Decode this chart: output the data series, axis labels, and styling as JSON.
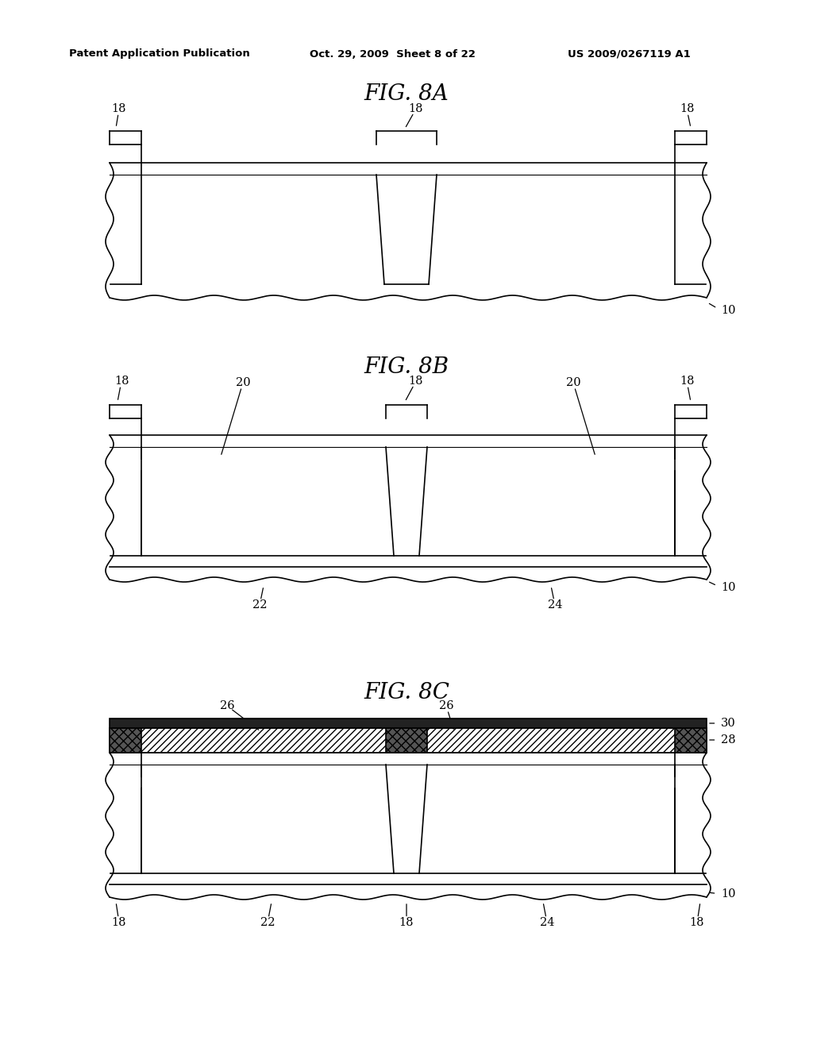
{
  "bg_color": "#ffffff",
  "line_color": "#000000",
  "header_left": "Patent Application Publication",
  "header_mid": "Oct. 29, 2009  Sheet 8 of 22",
  "header_right": "US 2009/0267119 A1",
  "fig8a_title": "FIG. 8A",
  "fig8b_title": "FIG. 8B",
  "fig8c_title": "FIG. 8C"
}
